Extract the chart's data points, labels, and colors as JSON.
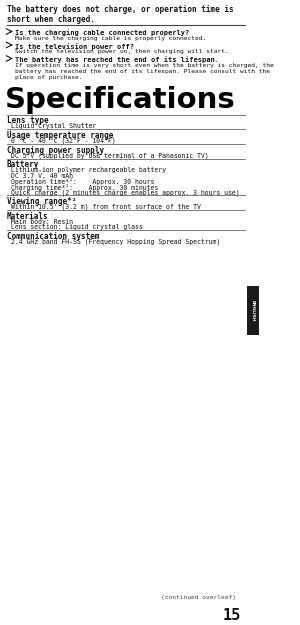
{
  "bg_color": "#ffffff",
  "text_color": "#000000",
  "gray_color": "#555555",
  "sidebar_color": "#1a1a1a",
  "line_color": "#888888",
  "title_bold": "The battery does not charge, or operation time is\nshort when charged.",
  "bullets": [
    {
      "bold": "Is the charging cable connected properly?",
      "normal": "Make sure the charging cable is properly connected."
    },
    {
      "bold": "Is the television power off?",
      "normal": "Switch the television power on, then charging will start."
    },
    {
      "bold": "The battery has reached the end of its lifespan.",
      "normal": "If operation time is very short even when the battery is charged, the\nbattery has reached the end of its lifespan. Please consult with the\nplace of purchase."
    }
  ],
  "big_title": "Specifications",
  "sections": [
    {
      "header": "Lens type",
      "content": "Liquid Crystal Shutter"
    },
    {
      "header": "Usage temperature range",
      "content": "0 °C - 40 °C (32°F - 104°F)"
    },
    {
      "header": "Charging power supply",
      "content": "DC 5 V (supplied by USB terminal of a Panasonic TV)"
    },
    {
      "header": "Battery",
      "content": "Lithium-ion polymer rechargeable battery\nDC 3.7 V, 40 mAh\nOperation time*¹:    Approx. 30 hours\nCharging time*¹:    Approx. 30 minutes\nQuick charge (2 minutes charge enables approx. 3 hours use)"
    },
    {
      "header": "Viewing range*²",
      "content": "Within 10.5’ (3.2 m) from front surface of the TV"
    },
    {
      "header": "Materials",
      "content": "Main body: Resin\nLens section: Liquid crystal glass"
    },
    {
      "header": "Communication system",
      "content": "2.4 GHz band FH-SS (Frequency Hopping Spread Spectrum)"
    }
  ],
  "sidebar_text": "ENGLISH",
  "footer_note": "(continued overleaf)",
  "page_number": "15"
}
